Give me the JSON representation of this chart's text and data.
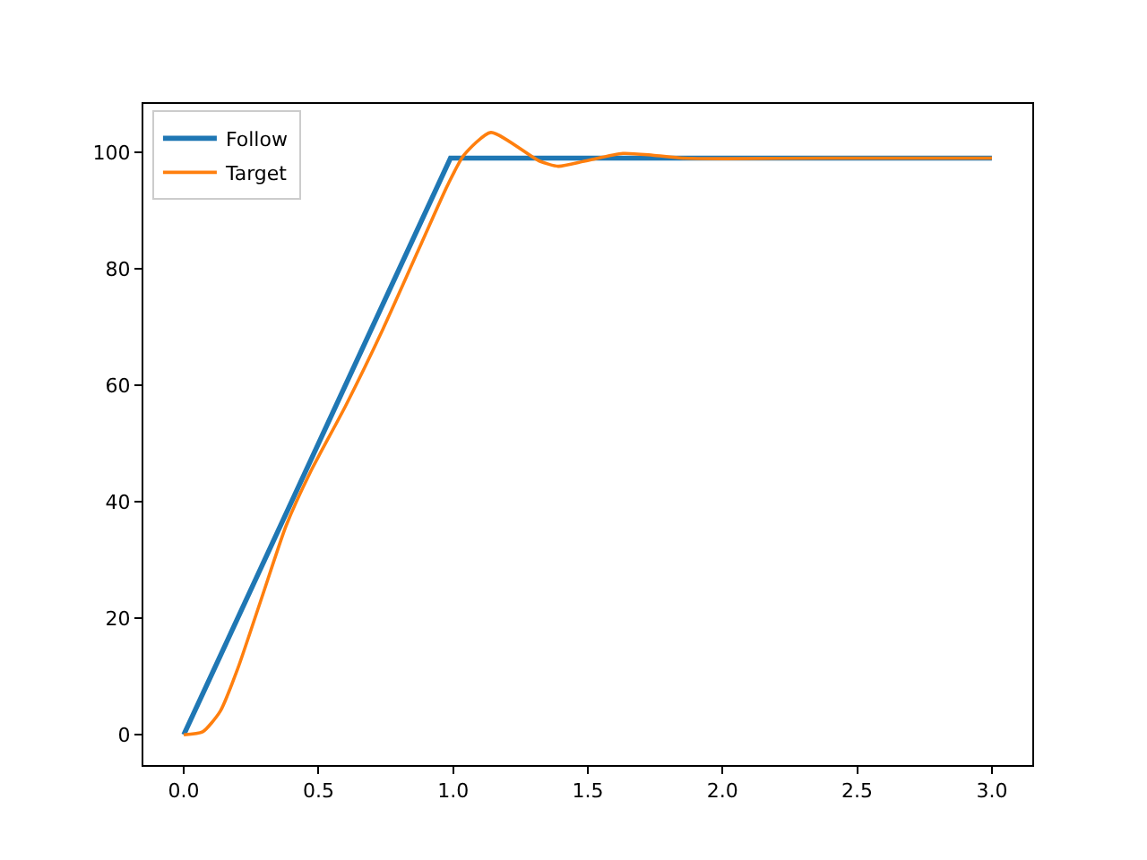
{
  "chart_data": {
    "type": "line",
    "xlim": [
      -0.15,
      3.15
    ],
    "ylim": [
      -5.2,
      108.3
    ],
    "xticks": [
      {
        "value": 0,
        "label": "0.0"
      },
      0.5,
      {
        "value": 1,
        "label": "1.0"
      },
      1.5,
      {
        "value": 2,
        "label": "2.0"
      },
      2.5,
      {
        "value": 3,
        "label": "3.0"
      }
    ],
    "yticks": [
      0,
      20,
      40,
      60,
      80,
      100
    ],
    "legend": "top left",
    "line_style": "solid",
    "marker": "none",
    "series": [
      {
        "name": "Follow",
        "color": "#1f77b4",
        "x": [
          0,
          0.99,
          3.0
        ],
        "values": [
          0,
          99,
          99
        ]
      },
      {
        "name": "Target",
        "color": "#ff7f0e",
        "x": [
          0,
          0.07,
          0.135,
          0.2,
          0.29,
          0.38,
          0.47,
          0.6,
          0.74,
          0.87,
          0.98,
          1.04,
          1.14,
          1.32,
          1.39,
          1.49,
          1.63,
          1.74,
          1.85,
          2.01,
          2.4,
          3.0
        ],
        "values": [
          0,
          0.5,
          4,
          11.3,
          23.6,
          35.9,
          45.1,
          56.4,
          69.7,
          83.1,
          94.4,
          99.5,
          103.4,
          98.5,
          97.6,
          98.5,
          99.8,
          99.5,
          99,
          98.9,
          99,
          99
        ]
      }
    ]
  }
}
